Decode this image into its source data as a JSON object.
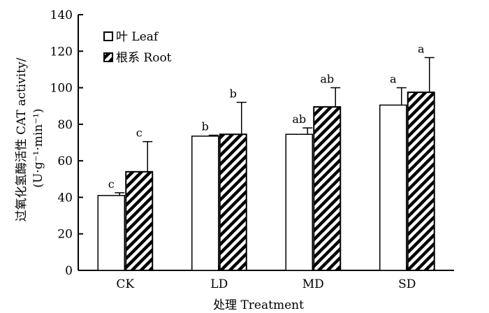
{
  "chart_data": {
    "type": "bar",
    "categories": [
      "CK",
      "LD",
      "MD",
      "SD"
    ],
    "series": [
      {
        "name": "叶 Leaf",
        "values": [
          41,
          73.5,
          74.5,
          90.5
        ],
        "error": [
          1.5,
          0.5,
          3.5,
          9.5
        ],
        "letters": [
          "c",
          "b",
          "ab",
          "a"
        ],
        "fill": "#ffffff"
      },
      {
        "name": "根系 Root",
        "values": [
          54,
          74.5,
          89.5,
          97.5
        ],
        "error": [
          16.5,
          17.5,
          10.5,
          19
        ],
        "letters": [
          "c",
          "b",
          "ab",
          "a"
        ],
        "fill": "hatch"
      }
    ],
    "xlabel": "处理 Treatment",
    "ylabel_line1": "过氧化氢酶活性 CAT activity/",
    "ylabel_line2": "(U·g⁻¹·min⁻¹)",
    "ylim": [
      0,
      140
    ],
    "yticks": [
      0,
      20,
      40,
      60,
      80,
      100,
      120,
      140
    ],
    "grid": false,
    "legend_position": "top-left"
  }
}
